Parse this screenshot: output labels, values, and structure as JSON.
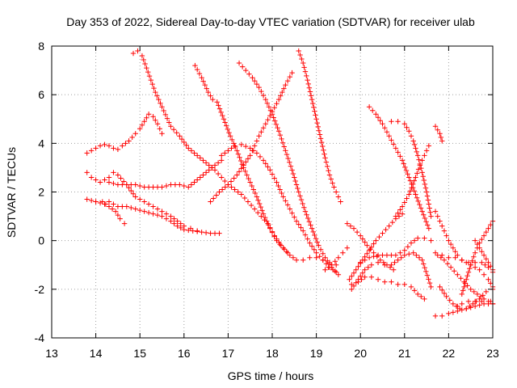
{
  "chart_data": {
    "type": "scatter",
    "title": "Day 353 of 2022, Sidereal Day-to-day VTEC variation (SDTVAR) for receiver ulab",
    "xlabel": "GPS time / hours",
    "ylabel": "SDTVAR / TECUs",
    "xlim": [
      13,
      23
    ],
    "ylim": [
      -4,
      8
    ],
    "xticks": [
      "13",
      "14",
      "15",
      "16",
      "17",
      "18",
      "19",
      "20",
      "21",
      "22",
      "23"
    ],
    "yticks": [
      "-4",
      "-2",
      "0",
      "2",
      "4",
      "6",
      "8"
    ],
    "grid": true,
    "marker": "+",
    "color": "#ff0000",
    "series": [
      {
        "x": [
          13.8,
          14.0,
          14.2,
          14.3,
          14.5,
          14.7,
          14.9,
          15.1,
          15.3,
          15.5,
          15.7,
          15.85,
          16.0,
          16.2,
          16.4,
          16.6,
          16.8
        ],
        "y": [
          1.7,
          1.6,
          1.5,
          1.6,
          1.4,
          1.4,
          1.3,
          1.2,
          1.1,
          1.0,
          0.8,
          0.6,
          0.45,
          0.4,
          0.35,
          0.3,
          0.3
        ]
      },
      {
        "x": [
          14.0,
          14.15,
          14.3,
          14.45,
          14.55,
          14.65
        ],
        "y": [
          1.6,
          1.6,
          1.4,
          1.2,
          0.9,
          0.7
        ]
      },
      {
        "x": [
          13.8,
          13.9,
          14.0,
          14.1,
          14.2,
          14.3,
          14.4,
          14.5,
          14.7,
          14.9,
          15.1,
          15.3,
          15.5,
          15.7,
          15.85,
          16.0,
          16.15,
          16.3
        ],
        "y": [
          2.8,
          2.6,
          2.5,
          2.4,
          2.5,
          2.6,
          2.8,
          2.7,
          2.3,
          1.8,
          1.6,
          1.4,
          1.2,
          1.0,
          0.8,
          0.6,
          0.5,
          0.4
        ]
      },
      {
        "x": [
          14.3,
          14.5,
          14.7,
          14.9,
          15.1,
          15.3,
          15.5,
          15.7,
          15.9,
          16.1,
          16.3,
          16.5,
          16.7,
          16.85
        ],
        "y": [
          2.4,
          2.3,
          2.3,
          2.3,
          2.2,
          2.2,
          2.2,
          2.3,
          2.3,
          2.2,
          2.5,
          2.8,
          3.1,
          3.3
        ]
      },
      {
        "x": [
          13.8,
          13.9,
          14.0,
          14.1,
          14.2,
          14.3,
          14.4,
          14.5,
          14.6,
          14.75,
          14.9,
          15.0,
          15.1,
          15.2,
          15.3,
          15.4,
          15.5
        ],
        "y": [
          3.6,
          3.7,
          3.8,
          3.9,
          3.95,
          3.9,
          3.8,
          3.75,
          3.9,
          4.1,
          4.4,
          4.6,
          4.9,
          5.2,
          5.1,
          4.8,
          4.4
        ]
      },
      {
        "x": [
          14.85,
          14.95,
          15.05,
          15.15,
          15.25,
          15.35,
          15.5,
          15.7,
          15.9,
          16.1,
          16.3,
          16.5,
          16.7,
          16.85,
          17.0,
          17.15,
          17.3,
          17.45,
          17.6,
          17.75,
          17.9,
          18.05,
          18.2,
          18.35
        ],
        "y": [
          7.7,
          7.8,
          7.6,
          7.1,
          6.6,
          6.1,
          5.5,
          4.7,
          4.3,
          3.8,
          3.5,
          3.2,
          2.9,
          2.6,
          2.3,
          2.1,
          1.9,
          1.6,
          1.3,
          1.0,
          0.7,
          0.2,
          -0.2,
          -0.5
        ]
      },
      {
        "x": [
          16.25,
          16.4,
          16.55,
          16.65,
          16.75,
          16.9,
          17.05,
          17.2,
          17.35,
          17.5,
          17.65,
          17.8,
          17.95,
          18.1,
          18.25,
          18.4,
          18.55,
          18.7,
          18.85,
          19.0,
          19.15,
          19.3,
          19.45
        ],
        "y": [
          7.2,
          6.7,
          6.1,
          5.8,
          5.7,
          5.0,
          4.3,
          3.7,
          3.0,
          2.4,
          1.8,
          1.1,
          0.5,
          0.0,
          -0.3,
          -0.6,
          -0.8,
          -0.8,
          -0.7,
          -0.7,
          -0.8,
          -0.9,
          -1.0
        ]
      },
      {
        "x": [
          16.6,
          16.8,
          17.0,
          17.2,
          17.35,
          17.5,
          17.6,
          17.7,
          17.85,
          18.0,
          18.15,
          18.3,
          18.45
        ],
        "y": [
          1.6,
          2.0,
          2.3,
          2.7,
          3.1,
          3.5,
          3.9,
          4.3,
          4.8,
          5.3,
          5.8,
          6.4,
          6.9
        ]
      },
      {
        "x": [
          16.85,
          17.0,
          17.15,
          17.3,
          17.5,
          17.65,
          17.8,
          17.95,
          18.1,
          18.25,
          18.4,
          18.55,
          18.7,
          18.85,
          19.0,
          19.15,
          19.3,
          19.45
        ],
        "y": [
          3.5,
          3.7,
          3.9,
          3.95,
          3.8,
          3.6,
          3.3,
          2.9,
          2.4,
          1.8,
          1.3,
          0.8,
          0.4,
          -0.1,
          -0.5,
          -0.8,
          -1.1,
          -1.3
        ]
      },
      {
        "x": [
          17.25,
          17.4,
          17.55,
          17.7,
          17.85,
          18.0,
          18.15,
          18.3,
          18.45,
          18.6,
          18.75,
          18.9,
          19.05,
          19.2,
          19.35,
          19.5
        ],
        "y": [
          7.3,
          7.0,
          6.7,
          6.3,
          5.8,
          5.2,
          4.5,
          3.7,
          2.9,
          2.0,
          1.2,
          0.5,
          -0.2,
          -0.7,
          -1.1,
          -1.4
        ]
      },
      {
        "x": [
          18.6,
          18.7,
          18.8,
          18.9,
          19.0,
          19.1,
          19.2,
          19.3,
          19.4,
          19.5,
          19.55
        ],
        "y": [
          7.8,
          7.3,
          6.6,
          5.8,
          5.0,
          4.2,
          3.4,
          2.7,
          2.2,
          1.8,
          1.6
        ]
      },
      {
        "x": [
          19.2,
          19.35,
          19.5,
          19.6,
          19.7
        ],
        "y": [
          -1.2,
          -1.0,
          -0.7,
          -0.5,
          -0.3
        ]
      },
      {
        "x": [
          19.7,
          19.85,
          20.0,
          20.15,
          20.3,
          20.45,
          20.6,
          20.75
        ],
        "y": [
          0.7,
          0.5,
          0.2,
          -0.2,
          -0.5,
          -0.8,
          -1.0,
          -1.2
        ]
      },
      {
        "x": [
          19.75,
          19.9,
          20.05,
          20.2,
          20.35,
          20.5,
          20.65,
          20.8,
          20.95
        ],
        "y": [
          -1.6,
          -1.2,
          -0.8,
          -0.4,
          0.0,
          0.3,
          0.6,
          0.9,
          1.1
        ]
      },
      {
        "x": [
          19.8,
          19.95,
          20.1,
          20.25,
          20.4,
          20.55,
          20.7,
          20.85,
          21.0,
          21.15,
          21.3,
          21.45
        ],
        "y": [
          -1.8,
          -1.7,
          -1.5,
          -1.5,
          -1.6,
          -1.7,
          -1.7,
          -1.8,
          -1.8,
          -1.9,
          -2.2,
          -2.4
        ]
      },
      {
        "x": [
          20.2,
          20.35,
          20.5,
          20.65,
          20.8,
          20.95,
          21.1,
          21.25,
          21.4,
          21.55
        ],
        "y": [
          5.5,
          5.2,
          4.8,
          4.3,
          3.8,
          3.3,
          2.6,
          1.9,
          1.2,
          0.5
        ]
      },
      {
        "x": [
          20.7,
          20.85,
          21.0,
          21.1,
          21.2,
          21.3,
          21.4,
          21.5,
          21.6
        ],
        "y": [
          4.9,
          4.9,
          4.8,
          4.5,
          4.1,
          3.5,
          2.8,
          2.0,
          1.0
        ]
      },
      {
        "x": [
          20.8,
          20.95,
          21.1,
          21.25,
          21.35,
          21.45,
          21.55
        ],
        "y": [
          1.0,
          1.4,
          1.9,
          2.6,
          3.1,
          3.5,
          3.9
        ]
      },
      {
        "x": [
          20.0,
          20.2,
          20.4,
          20.6,
          20.8,
          21.0,
          21.15,
          21.3,
          21.45,
          21.6
        ],
        "y": [
          -0.9,
          -0.7,
          -0.6,
          -0.6,
          -0.6,
          -0.4,
          -0.1,
          0.1,
          0.1,
          0.0
        ]
      },
      {
        "x": [
          19.8,
          19.95,
          20.1,
          20.25,
          20.4,
          20.55,
          20.7,
          20.85,
          21.0,
          21.2,
          21.4,
          21.6
        ],
        "y": [
          -2.0,
          -1.6,
          -1.2,
          -1.0,
          -0.9,
          -1.0,
          -1.0,
          -0.8,
          -0.6,
          -0.5,
          -0.8,
          -1.9
        ]
      },
      {
        "x": [
          21.7,
          21.8,
          21.85
        ],
        "y": [
          4.7,
          4.4,
          4.1
        ]
      },
      {
        "x": [
          21.7,
          21.8,
          21.9,
          22.0,
          22.1,
          22.2,
          22.3,
          22.4,
          22.5,
          22.6,
          22.7,
          22.8,
          22.9,
          23.0
        ],
        "y": [
          1.2,
          0.8,
          0.4,
          0.0,
          -0.3,
          -0.6,
          -0.8,
          -0.9,
          -1.0,
          -1.1,
          -1.2,
          -1.4,
          -1.6,
          -1.9
        ]
      },
      {
        "x": [
          21.7,
          21.85,
          22.0,
          22.15,
          22.3,
          22.45,
          22.6,
          22.75,
          22.9,
          23.0
        ],
        "y": [
          -0.5,
          -0.6,
          -0.7,
          -0.7,
          -0.8,
          -0.9,
          -0.9,
          -0.9,
          -1.1,
          -1.3
        ]
      },
      {
        "x": [
          21.75,
          21.9,
          22.05,
          22.2,
          22.35,
          22.5,
          22.65,
          22.8,
          22.95,
          23.0
        ],
        "y": [
          -0.6,
          -0.8,
          -1.1,
          -1.4,
          -1.7,
          -2.0,
          -2.2,
          -2.4,
          -2.5,
          -2.6
        ]
      },
      {
        "x": [
          21.7,
          21.85,
          22.0,
          22.2,
          22.4,
          22.6,
          22.8,
          23.0
        ],
        "y": [
          -3.1,
          -3.1,
          -3.0,
          -2.9,
          -2.8,
          -2.7,
          -2.6,
          -2.6
        ]
      },
      {
        "x": [
          21.8,
          21.95,
          22.1,
          22.25,
          22.4,
          22.55,
          22.7,
          22.85,
          23.0
        ],
        "y": [
          -1.9,
          -2.3,
          -2.6,
          -2.8,
          -2.8,
          -2.6,
          -2.4,
          -2.1,
          -2.0
        ]
      },
      {
        "x": [
          22.3,
          22.4,
          22.5,
          22.6,
          22.7,
          22.8,
          22.9,
          23.0
        ],
        "y": [
          -2.2,
          -1.6,
          -1.0,
          -0.5,
          -0.1,
          0.2,
          0.5,
          0.8
        ]
      },
      {
        "x": [
          22.6,
          22.7,
          22.8,
          22.9,
          23.0
        ],
        "y": [
          0.0,
          -0.3,
          -0.6,
          -0.9,
          -1.2
        ]
      },
      {
        "x": [
          22.2,
          22.3,
          22.45,
          22.6,
          22.75,
          22.9,
          23.0
        ],
        "y": [
          -2.7,
          -2.6,
          -2.5,
          -2.5,
          -2.5,
          -2.5,
          -2.6
        ]
      }
    ]
  }
}
